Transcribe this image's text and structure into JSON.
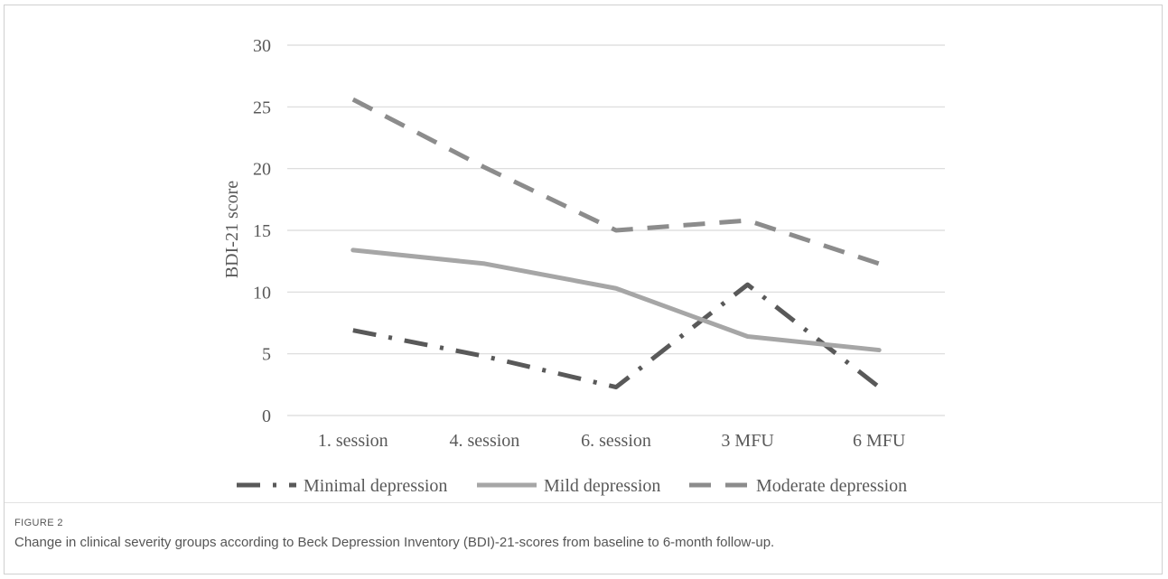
{
  "figure": {
    "label": "FIGURE 2",
    "caption": "Change in clinical severity groups according to Beck Depression Inventory (BDI)-21-scores from baseline to 6-month follow-up."
  },
  "chart_data": {
    "type": "line",
    "categories": [
      "1. session",
      "4. session",
      "6. session",
      "3 MFU",
      "6 MFU"
    ],
    "ylabel": "BDI-21 score",
    "xlabel": "",
    "ylim": [
      0,
      30
    ],
    "yticks": [
      0,
      5,
      10,
      15,
      20,
      25,
      30
    ],
    "grid": true,
    "legend_position": "bottom",
    "series": [
      {
        "name": "Minimal depression",
        "values": [
          6.9,
          4.8,
          2.3,
          10.6,
          2.3
        ],
        "color": "#595959",
        "style": "long-dash-dot"
      },
      {
        "name": "Mild depression",
        "values": [
          13.4,
          12.3,
          10.3,
          6.4,
          5.3
        ],
        "color": "#a6a6a6",
        "style": "solid"
      },
      {
        "name": "Moderate depression",
        "values": [
          25.6,
          20.1,
          15.0,
          15.8,
          12.3
        ],
        "color": "#8c8c8c",
        "style": "dash"
      }
    ]
  }
}
